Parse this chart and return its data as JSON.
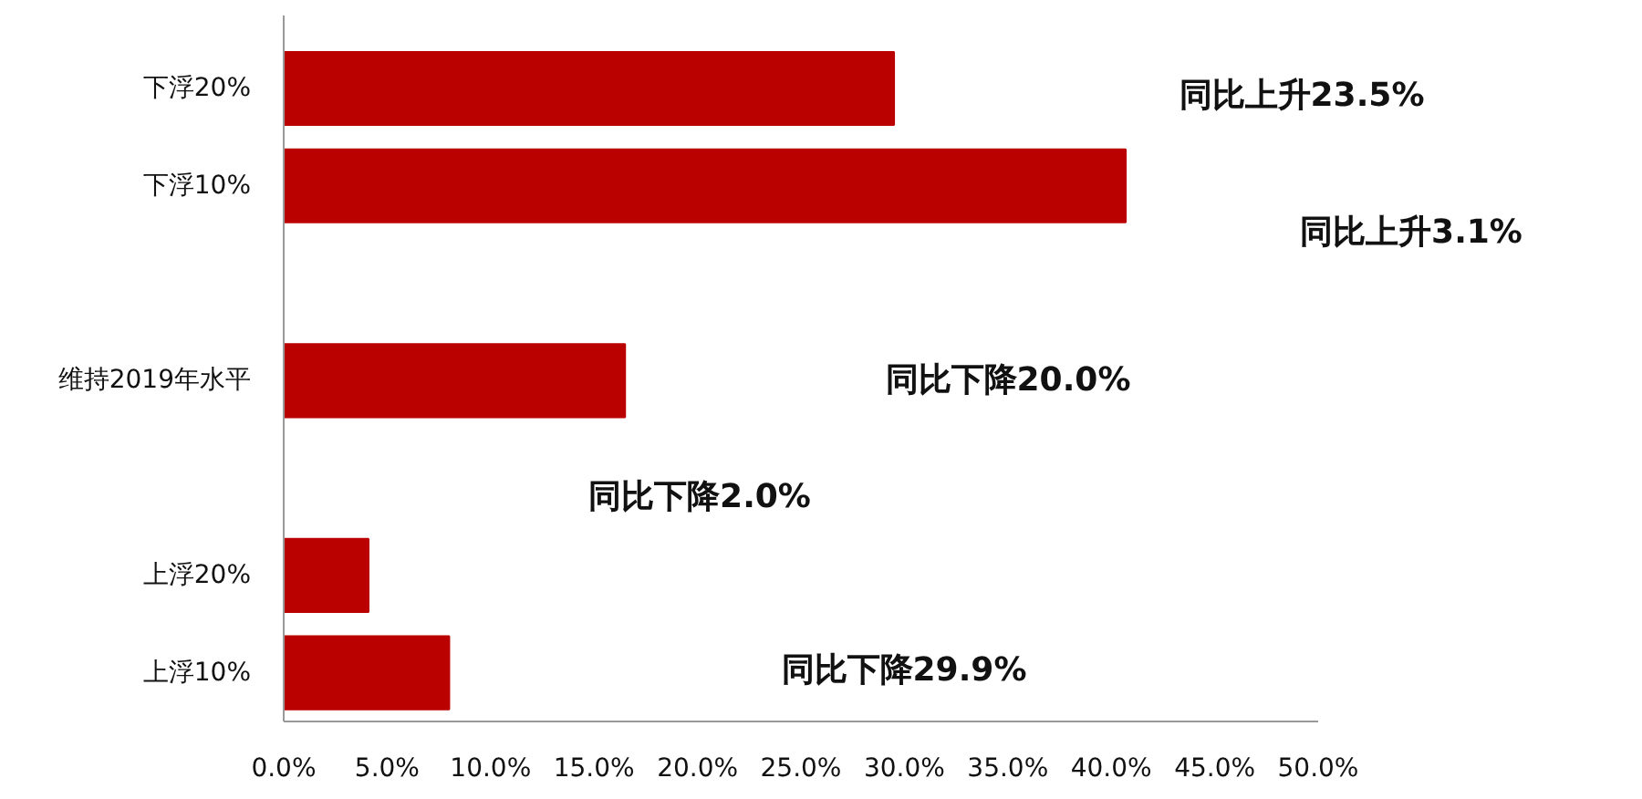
{
  "chart_data": {
    "type": "bar",
    "orientation": "horizontal",
    "categories": [
      "下浮20%",
      "下浮10%",
      null,
      "维持2019年水平",
      null,
      "上浮20%",
      "上浮10%"
    ],
    "values": [
      29.5,
      40.7,
      null,
      16.5,
      null,
      4.1,
      8.0
    ],
    "color": "#bb0000",
    "xlim": [
      0,
      50
    ],
    "xticks": [
      {
        "value": 0,
        "label": "0.0%"
      },
      {
        "value": 5,
        "label": "5.0%"
      },
      {
        "value": 10,
        "label": "10.0%"
      },
      {
        "value": 15,
        "label": "15.0%"
      },
      {
        "value": 20,
        "label": "20.0%"
      },
      {
        "value": 25,
        "label": "25.0%"
      },
      {
        "value": 30,
        "label": "30.0%"
      },
      {
        "value": 35,
        "label": "35.0%"
      },
      {
        "value": 40,
        "label": "40.0%"
      },
      {
        "value": 45,
        "label": "45.0%"
      },
      {
        "value": 50,
        "label": "50.0%"
      }
    ],
    "grid": false,
    "annotations": [
      "同比上升23.5%",
      "同比上升3.1%",
      "同比下降20.0%",
      "同比下降2.0%",
      "同比下降29.9%"
    ]
  }
}
